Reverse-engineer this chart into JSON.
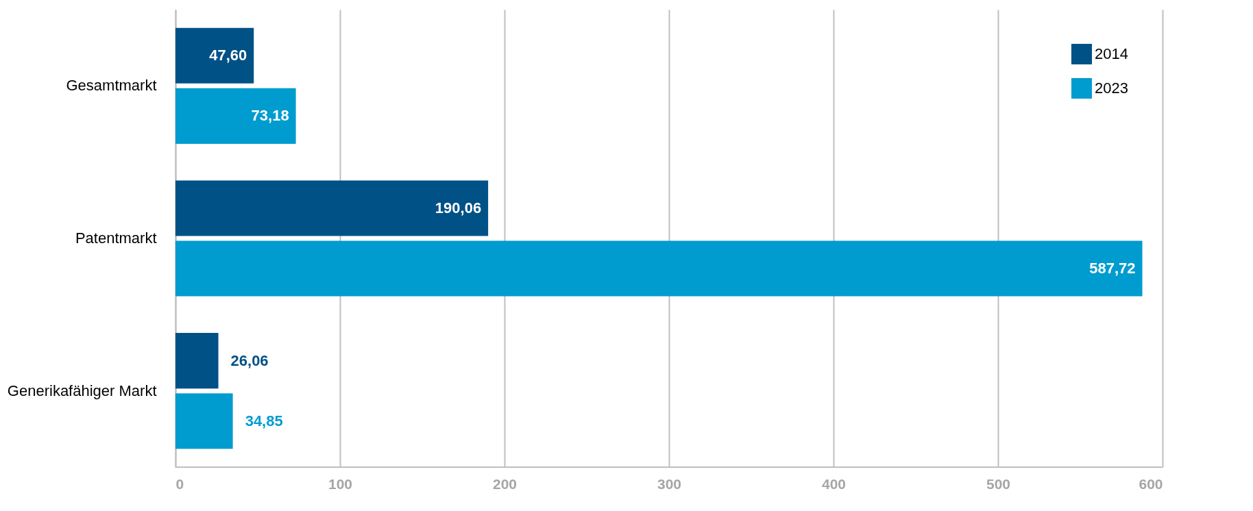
{
  "chart_data": {
    "type": "bar",
    "orientation": "horizontal",
    "categories": [
      "Gesamtmarkt",
      "Patentmarkt",
      "Generikafähiger Markt"
    ],
    "series": [
      {
        "name": "2014",
        "color": "#005186",
        "values": [
          47.6,
          190.06,
          26.06
        ],
        "value_labels": [
          "47,60",
          "190,06",
          "26,06"
        ]
      },
      {
        "name": "2023",
        "color": "#009ccf",
        "values": [
          73.18,
          587.72,
          34.85
        ],
        "value_labels": [
          "73,18",
          "587,72",
          "34,85"
        ]
      }
    ],
    "xlim": [
      0,
      600
    ],
    "xticks": [
      0,
      100,
      200,
      300,
      400,
      500,
      600
    ],
    "grid": "x",
    "legend": "top right"
  }
}
